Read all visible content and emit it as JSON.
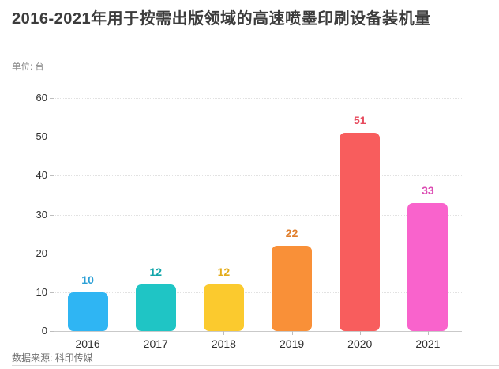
{
  "header": {
    "title": "2016-2021年用于按需出版领域的高速喷墨印刷设备装机量",
    "unit_label": "单位: 台"
  },
  "chart_data": {
    "type": "bar",
    "title": "2016-2021年用于按需出版领域的高速喷墨印刷设备装机量",
    "subtitle": "单位: 台",
    "categories": [
      "2016",
      "2017",
      "2018",
      "2019",
      "2020",
      "2021"
    ],
    "values": [
      10,
      12,
      12,
      22,
      51,
      33
    ],
    "bar_colors": [
      "#2fb5f3",
      "#1fc5c5",
      "#fbca2e",
      "#f99038",
      "#f85d5d",
      "#f963cc"
    ],
    "value_label_colors": [
      "#2a9fd6",
      "#12a6aa",
      "#e3ac1b",
      "#e07d2a",
      "#e74b5e",
      "#dc4cb3"
    ],
    "xlabel": "",
    "ylabel": "",
    "ylim": [
      0,
      60
    ],
    "yticks": [
      0,
      10,
      20,
      30,
      40,
      50,
      60
    ],
    "grid": "horizontal-dotted",
    "legend": "none"
  },
  "footer": {
    "source": "数据来源: 科印传媒"
  }
}
